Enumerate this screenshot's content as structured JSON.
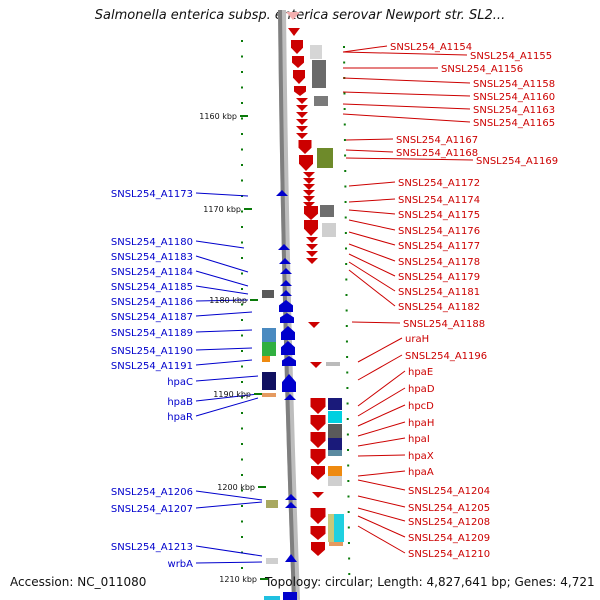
{
  "title": "Salmonella enterica subsp. enterica serovar Newport str. SL2...",
  "footer": {
    "accession": "Accession: NC_011080",
    "stats": "Topology: circular; Length: 4,827,641 bp; Genes: 4,721"
  },
  "scale_ticks": [
    "1160 kbp",
    "1170 kbp",
    "1180 kbp",
    "1190 kbp",
    "1200 kbp",
    "1210 kbp"
  ],
  "colors": {
    "forward": "#0000cc",
    "reverse": "#cc0000",
    "backbone": "#808080",
    "tick": "#0a7a0a"
  },
  "forward_genes": [
    "SNSL254_A1173",
    "SNSL254_A1180",
    "SNSL254_A1183",
    "SNSL254_A1184",
    "SNSL254_A1185",
    "SNSL254_A1186",
    "SNSL254_A1187",
    "SNSL254_A1189",
    "SNSL254_A1190",
    "SNSL254_A1191",
    "hpaC",
    "hpaB",
    "hpaR",
    "SNSL254_A1206",
    "SNSL254_A1207",
    "SNSL254_A1213",
    "wrbA"
  ],
  "reverse_genes": [
    "SNSL254_A1154",
    "SNSL254_A1155",
    "SNSL254_A1156",
    "SNSL254_A1158",
    "SNSL254_A1160",
    "SNSL254_A1163",
    "SNSL254_A1165",
    "SNSL254_A1167",
    "SNSL254_A1168",
    "SNSL254_A1169",
    "SNSL254_A1172",
    "SNSL254_A1174",
    "SNSL254_A1175",
    "SNSL254_A1176",
    "SNSL254_A1177",
    "SNSL254_A1178",
    "SNSL254_A1179",
    "SNSL254_A1181",
    "SNSL254_A1182",
    "SNSL254_A1188",
    "uraH",
    "SNSL254_A1196",
    "hpaE",
    "hpaD",
    "hpcD",
    "hpaH",
    "hpaI",
    "hpaX",
    "hpaA",
    "SNSL254_A1204",
    "SNSL254_A1205",
    "SNSL254_A1208",
    "SNSL254_A1209",
    "SNSL254_A1210"
  ]
}
